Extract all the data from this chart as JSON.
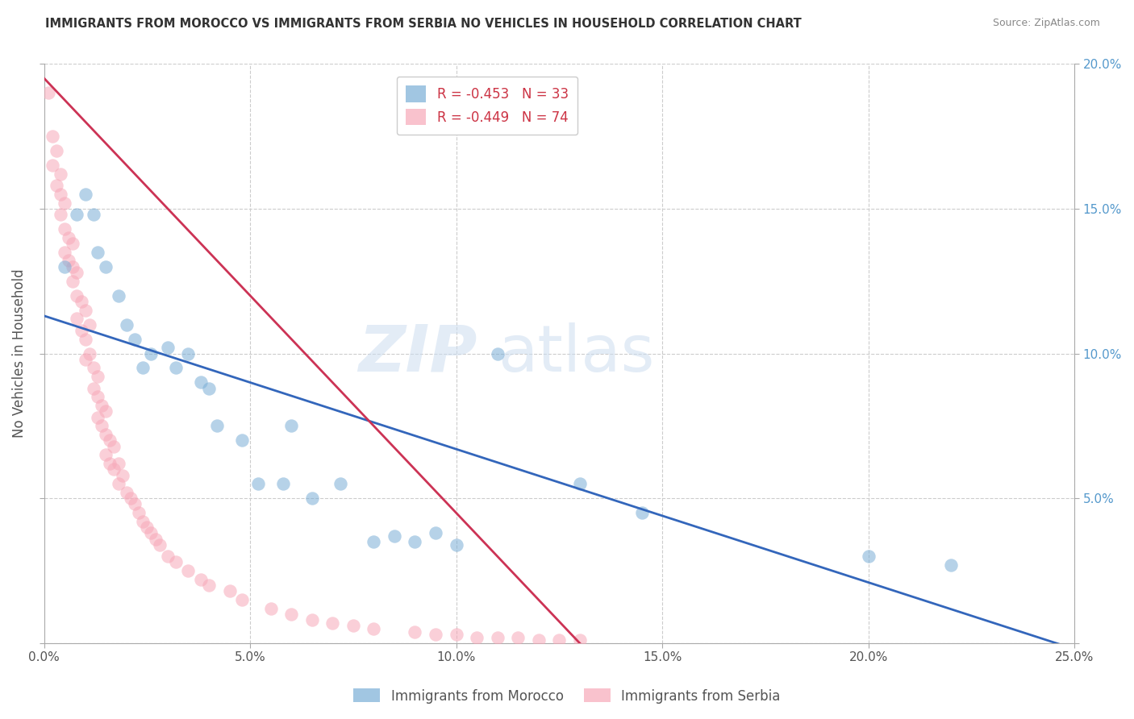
{
  "title": "IMMIGRANTS FROM MOROCCO VS IMMIGRANTS FROM SERBIA NO VEHICLES IN HOUSEHOLD CORRELATION CHART",
  "source": "Source: ZipAtlas.com",
  "ylabel": "No Vehicles in Household",
  "legend_label1": "Immigrants from Morocco",
  "legend_label2": "Immigrants from Serbia",
  "R1": "-0.453",
  "N1": "33",
  "R2": "-0.449",
  "N2": "74",
  "xlim": [
    0.0,
    0.25
  ],
  "ylim": [
    0.0,
    0.2
  ],
  "xticks": [
    0.0,
    0.05,
    0.1,
    0.15,
    0.2,
    0.25
  ],
  "yticks": [
    0.0,
    0.05,
    0.1,
    0.15,
    0.2
  ],
  "xtick_labels": [
    "0.0%",
    "5.0%",
    "10.0%",
    "15.0%",
    "20.0%",
    "25.0%"
  ],
  "ytick_labels": [
    "",
    "5.0%",
    "10.0%",
    "15.0%",
    "20.0%"
  ],
  "color_morocco": "#7aaed6",
  "color_serbia": "#f7a8b8",
  "color_morocco_line": "#3366bb",
  "color_serbia_line": "#cc3355",
  "background_color": "#ffffff",
  "watermark_text": "ZIP",
  "watermark_text2": "atlas",
  "morocco_x": [
    0.005,
    0.008,
    0.01,
    0.012,
    0.013,
    0.015,
    0.018,
    0.02,
    0.022,
    0.024,
    0.026,
    0.03,
    0.032,
    0.035,
    0.038,
    0.04,
    0.042,
    0.048,
    0.052,
    0.058,
    0.06,
    0.065,
    0.072,
    0.08,
    0.085,
    0.09,
    0.095,
    0.1,
    0.11,
    0.13,
    0.145,
    0.2,
    0.22
  ],
  "morocco_y": [
    0.13,
    0.148,
    0.155,
    0.148,
    0.135,
    0.13,
    0.12,
    0.11,
    0.105,
    0.095,
    0.1,
    0.102,
    0.095,
    0.1,
    0.09,
    0.088,
    0.075,
    0.07,
    0.055,
    0.055,
    0.075,
    0.05,
    0.055,
    0.035,
    0.037,
    0.035,
    0.038,
    0.034,
    0.1,
    0.055,
    0.045,
    0.03,
    0.027
  ],
  "serbia_x": [
    0.001,
    0.002,
    0.002,
    0.003,
    0.003,
    0.004,
    0.004,
    0.004,
    0.005,
    0.005,
    0.005,
    0.006,
    0.006,
    0.007,
    0.007,
    0.007,
    0.008,
    0.008,
    0.008,
    0.009,
    0.009,
    0.01,
    0.01,
    0.01,
    0.011,
    0.011,
    0.012,
    0.012,
    0.013,
    0.013,
    0.013,
    0.014,
    0.014,
    0.015,
    0.015,
    0.015,
    0.016,
    0.016,
    0.017,
    0.017,
    0.018,
    0.018,
    0.019,
    0.02,
    0.021,
    0.022,
    0.023,
    0.024,
    0.025,
    0.026,
    0.027,
    0.028,
    0.03,
    0.032,
    0.035,
    0.038,
    0.04,
    0.045,
    0.048,
    0.055,
    0.06,
    0.065,
    0.07,
    0.075,
    0.08,
    0.09,
    0.095,
    0.1,
    0.105,
    0.11,
    0.115,
    0.12,
    0.125,
    0.13
  ],
  "serbia_y": [
    0.19,
    0.175,
    0.165,
    0.17,
    0.158,
    0.162,
    0.155,
    0.148,
    0.152,
    0.143,
    0.135,
    0.14,
    0.132,
    0.138,
    0.13,
    0.125,
    0.128,
    0.12,
    0.112,
    0.118,
    0.108,
    0.115,
    0.105,
    0.098,
    0.11,
    0.1,
    0.095,
    0.088,
    0.092,
    0.085,
    0.078,
    0.082,
    0.075,
    0.08,
    0.072,
    0.065,
    0.07,
    0.062,
    0.068,
    0.06,
    0.062,
    0.055,
    0.058,
    0.052,
    0.05,
    0.048,
    0.045,
    0.042,
    0.04,
    0.038,
    0.036,
    0.034,
    0.03,
    0.028,
    0.025,
    0.022,
    0.02,
    0.018,
    0.015,
    0.012,
    0.01,
    0.008,
    0.007,
    0.006,
    0.005,
    0.004,
    0.003,
    0.003,
    0.002,
    0.002,
    0.002,
    0.001,
    0.001,
    0.001
  ],
  "morocco_line_x": [
    0.0,
    0.25
  ],
  "morocco_line_y": [
    0.113,
    -0.002
  ],
  "serbia_line_x": [
    0.0,
    0.13
  ],
  "serbia_line_y": [
    0.195,
    0.0
  ]
}
